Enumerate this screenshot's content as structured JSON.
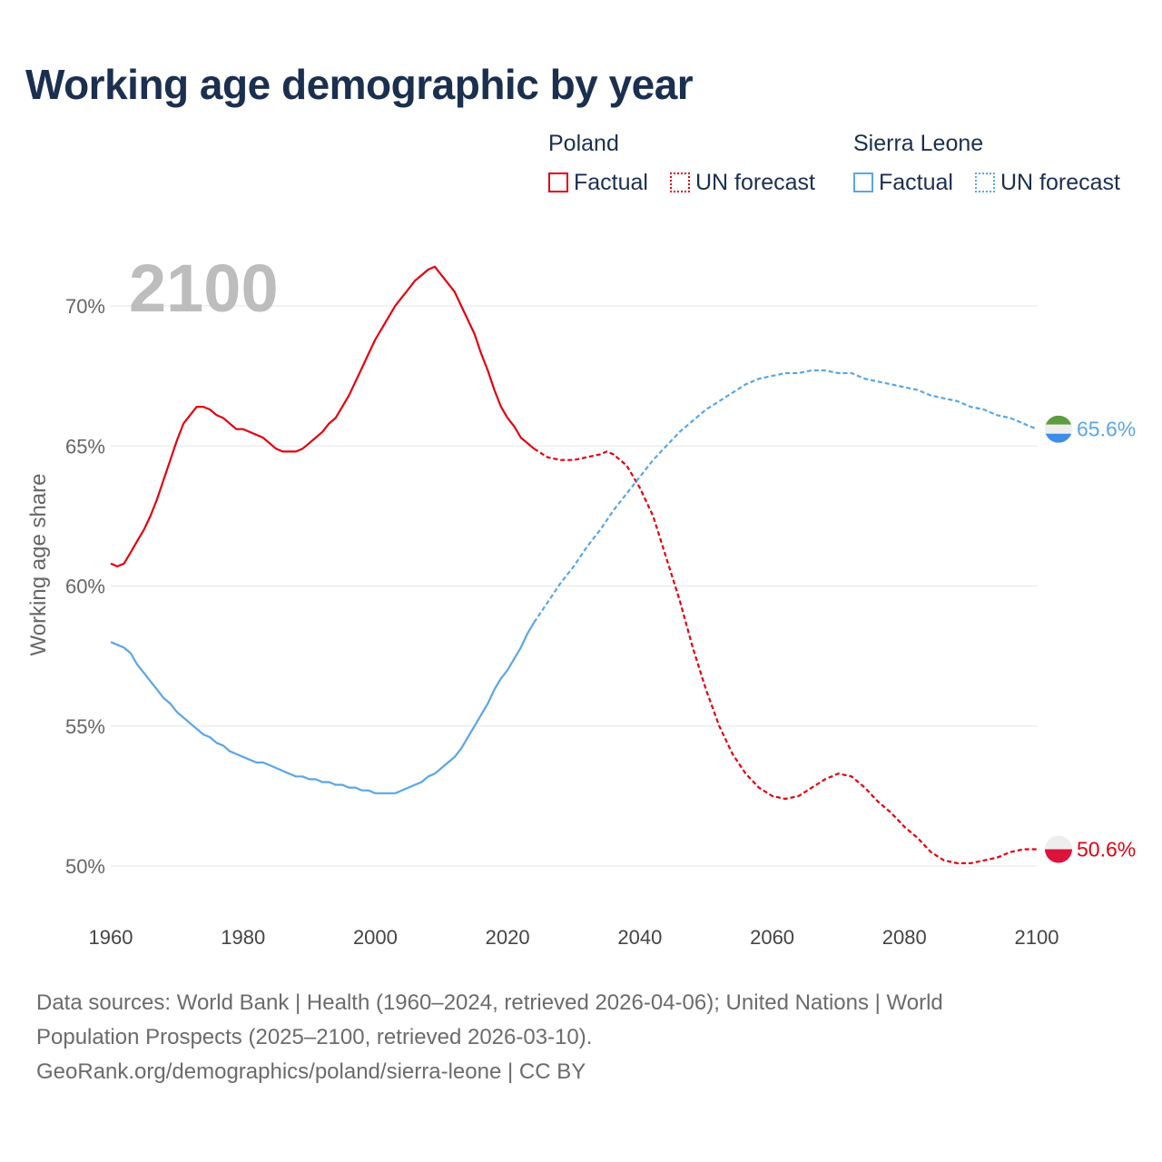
{
  "title": "Working age demographic by year",
  "legend": {
    "groups": [
      {
        "country": "Poland",
        "color": "#e3000f",
        "items": [
          {
            "label": "Factual",
            "style": "solid"
          },
          {
            "label": "UN forecast",
            "style": "dotted"
          }
        ]
      },
      {
        "country": "Sierra Leone",
        "color": "#5aa6e6",
        "items": [
          {
            "label": "Factual",
            "style": "solid"
          },
          {
            "label": "UN forecast",
            "style": "dotted"
          }
        ]
      }
    ]
  },
  "year_display": "2100",
  "chart_data": {
    "type": "line",
    "title": "Working age demographic by year",
    "xlabel": "",
    "ylabel": "Working age share",
    "xlim": [
      1960,
      2100
    ],
    "ylim": [
      50,
      70
    ],
    "yticks": [
      50,
      55,
      60,
      65,
      70
    ],
    "ytick_labels": [
      "50%",
      "55%",
      "60%",
      "65%",
      "70%"
    ],
    "xticks": [
      1960,
      1980,
      2000,
      2020,
      2040,
      2060,
      2080,
      2100
    ],
    "xtick_labels": [
      "1960",
      "1980",
      "2000",
      "2020",
      "2040",
      "2060",
      "2080",
      "2100"
    ],
    "grid": true,
    "series": [
      {
        "name": "Poland",
        "color": "#e3000f",
        "end_label": "50.6%",
        "factual": {
          "x": [
            1960,
            1961,
            1962,
            1963,
            1964,
            1965,
            1966,
            1967,
            1968,
            1969,
            1970,
            1971,
            1972,
            1973,
            1974,
            1975,
            1976,
            1977,
            1978,
            1979,
            1980,
            1981,
            1982,
            1983,
            1984,
            1985,
            1986,
            1987,
            1988,
            1989,
            1990,
            1991,
            1992,
            1993,
            1994,
            1995,
            1996,
            1997,
            1998,
            1999,
            2000,
            2001,
            2002,
            2003,
            2004,
            2005,
            2006,
            2007,
            2008,
            2009,
            2010,
            2011,
            2012,
            2013,
            2014,
            2015,
            2016,
            2017,
            2018,
            2019,
            2020,
            2021,
            2022,
            2023,
            2024
          ],
          "y": [
            60.8,
            60.7,
            60.8,
            61.2,
            61.6,
            62.0,
            62.5,
            63.1,
            63.8,
            64.5,
            65.2,
            65.8,
            66.1,
            66.4,
            66.4,
            66.3,
            66.1,
            66.0,
            65.8,
            65.6,
            65.6,
            65.5,
            65.4,
            65.3,
            65.1,
            64.9,
            64.8,
            64.8,
            64.8,
            64.9,
            65.1,
            65.3,
            65.5,
            65.8,
            66.0,
            66.4,
            66.8,
            67.3,
            67.8,
            68.3,
            68.8,
            69.2,
            69.6,
            70.0,
            70.3,
            70.6,
            70.9,
            71.1,
            71.3,
            71.4,
            71.1,
            70.8,
            70.5,
            70.0,
            69.5,
            69.0,
            68.3,
            67.7,
            67.0,
            66.4,
            66.0,
            65.7,
            65.3,
            65.1,
            64.9
          ]
        },
        "forecast": {
          "x": [
            2024,
            2026,
            2028,
            2030,
            2032,
            2034,
            2035,
            2036,
            2038,
            2040,
            2042,
            2044,
            2046,
            2048,
            2050,
            2052,
            2054,
            2056,
            2058,
            2060,
            2062,
            2064,
            2066,
            2068,
            2070,
            2072,
            2074,
            2076,
            2078,
            2080,
            2082,
            2084,
            2086,
            2088,
            2090,
            2092,
            2094,
            2096,
            2098,
            2100
          ],
          "y": [
            64.9,
            64.6,
            64.5,
            64.5,
            64.6,
            64.7,
            64.8,
            64.7,
            64.3,
            63.5,
            62.5,
            61.0,
            59.5,
            57.8,
            56.3,
            55.0,
            54.0,
            53.3,
            52.8,
            52.5,
            52.4,
            52.5,
            52.8,
            53.1,
            53.3,
            53.2,
            52.8,
            52.3,
            51.9,
            51.4,
            51.0,
            50.5,
            50.2,
            50.1,
            50.1,
            50.2,
            50.3,
            50.5,
            50.6,
            50.6
          ]
        }
      },
      {
        "name": "Sierra Leone",
        "color": "#5aa6e6",
        "end_label": "65.6%",
        "factual": {
          "x": [
            1960,
            1961,
            1962,
            1963,
            1964,
            1965,
            1966,
            1967,
            1968,
            1969,
            1970,
            1971,
            1972,
            1973,
            1974,
            1975,
            1976,
            1977,
            1978,
            1979,
            1980,
            1981,
            1982,
            1983,
            1984,
            1985,
            1986,
            1987,
            1988,
            1989,
            1990,
            1991,
            1992,
            1993,
            1994,
            1995,
            1996,
            1997,
            1998,
            1999,
            2000,
            2001,
            2002,
            2003,
            2004,
            2005,
            2006,
            2007,
            2008,
            2009,
            2010,
            2011,
            2012,
            2013,
            2014,
            2015,
            2016,
            2017,
            2018,
            2019,
            2020,
            2021,
            2022,
            2023,
            2024
          ],
          "y": [
            58.0,
            57.9,
            57.8,
            57.6,
            57.2,
            56.9,
            56.6,
            56.3,
            56.0,
            55.8,
            55.5,
            55.3,
            55.1,
            54.9,
            54.7,
            54.6,
            54.4,
            54.3,
            54.1,
            54.0,
            53.9,
            53.8,
            53.7,
            53.7,
            53.6,
            53.5,
            53.4,
            53.3,
            53.2,
            53.2,
            53.1,
            53.1,
            53.0,
            53.0,
            52.9,
            52.9,
            52.8,
            52.8,
            52.7,
            52.7,
            52.6,
            52.6,
            52.6,
            52.6,
            52.7,
            52.8,
            52.9,
            53.0,
            53.2,
            53.3,
            53.5,
            53.7,
            53.9,
            54.2,
            54.6,
            55.0,
            55.4,
            55.8,
            56.3,
            56.7,
            57.0,
            57.4,
            57.8,
            58.3,
            58.7
          ]
        },
        "forecast": {
          "x": [
            2024,
            2026,
            2028,
            2030,
            2032,
            2034,
            2036,
            2038,
            2040,
            2042,
            2044,
            2046,
            2048,
            2050,
            2052,
            2054,
            2056,
            2058,
            2060,
            2062,
            2064,
            2066,
            2068,
            2070,
            2072,
            2074,
            2076,
            2078,
            2080,
            2082,
            2084,
            2086,
            2088,
            2090,
            2092,
            2094,
            2096,
            2098,
            2100
          ],
          "y": [
            58.7,
            59.4,
            60.1,
            60.7,
            61.4,
            62.0,
            62.7,
            63.3,
            63.9,
            64.5,
            65.0,
            65.5,
            65.9,
            66.3,
            66.6,
            66.9,
            67.2,
            67.4,
            67.5,
            67.6,
            67.6,
            67.7,
            67.7,
            67.6,
            67.6,
            67.4,
            67.3,
            67.2,
            67.1,
            67.0,
            66.8,
            66.7,
            66.6,
            66.4,
            66.3,
            66.1,
            66.0,
            65.8,
            65.6
          ]
        }
      }
    ]
  },
  "sources": {
    "line1": "Data sources: World Bank | Health (1960–2024, retrieved 2026-04-06); United Nations | World",
    "line2": "Population Prospects (2025–2100, retrieved 2026-03-10).",
    "line3": "GeoRank.org/demographics/poland/sierra-leone | CC BY"
  }
}
